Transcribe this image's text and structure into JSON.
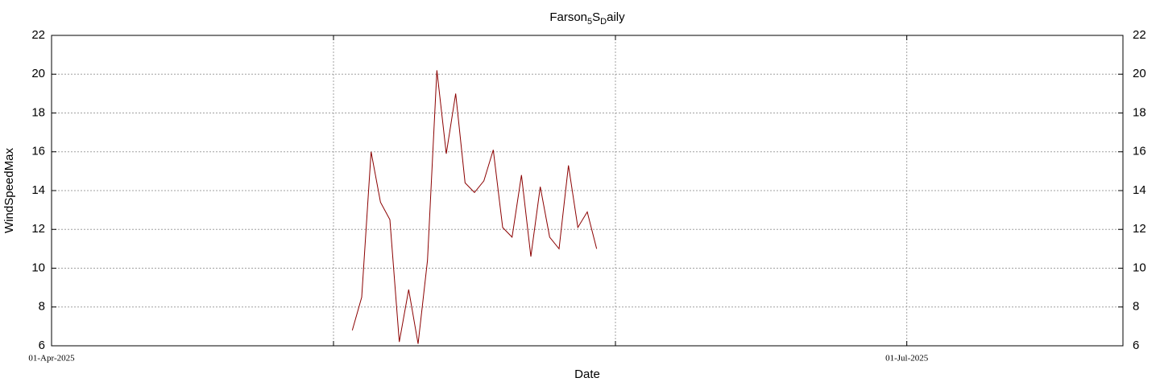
{
  "chart_data": {
    "type": "line",
    "title": [
      "Farson",
      "5",
      "S",
      "D",
      "aily"
    ],
    "x_label": "Date",
    "y_label": "WindSpeedMax",
    "x": [
      "03-May-2025",
      "04-May-2025",
      "05-May-2025",
      "06-May-2025",
      "07-May-2025",
      "08-May-2025",
      "09-May-2025",
      "10-May-2025",
      "11-May-2025",
      "12-May-2025",
      "13-May-2025",
      "14-May-2025",
      "15-May-2025",
      "16-May-2025",
      "17-May-2025",
      "18-May-2025",
      "19-May-2025",
      "20-May-2025",
      "21-May-2025",
      "22-May-2025",
      "23-May-2025",
      "24-May-2025",
      "25-May-2025",
      "26-May-2025",
      "27-May-2025",
      "28-May-2025",
      "29-May-2025"
    ],
    "series": [
      {
        "name": "WindSpeedMax",
        "color": "#8b0000",
        "values": [
          6.8,
          8.5,
          16.0,
          13.4,
          12.5,
          6.2,
          8.9,
          6.1,
          10.4,
          20.2,
          15.9,
          19.0,
          14.4,
          13.9,
          14.5,
          16.1,
          12.1,
          11.6,
          14.8,
          10.6,
          14.2,
          11.6,
          11.0,
          15.3,
          12.1,
          12.9,
          11.0
        ]
      }
    ],
    "xlim": [
      "01-Apr-2025",
      "24-Jul-2025"
    ],
    "xticks": [
      "01-Apr-2025",
      {
        "value": "01-May-2025",
        "label": null
      },
      {
        "value": "31-May-2025",
        "label": null
      },
      "01-Jul-2025"
    ],
    "ylim": [
      6,
      22
    ],
    "yticks": [
      6,
      8,
      10,
      12,
      14,
      16,
      18,
      20,
      22
    ],
    "y2lim": [
      6,
      22
    ],
    "y2ticks": [
      6,
      8,
      10,
      12,
      14,
      16,
      18,
      20,
      22
    ],
    "grid": true
  }
}
